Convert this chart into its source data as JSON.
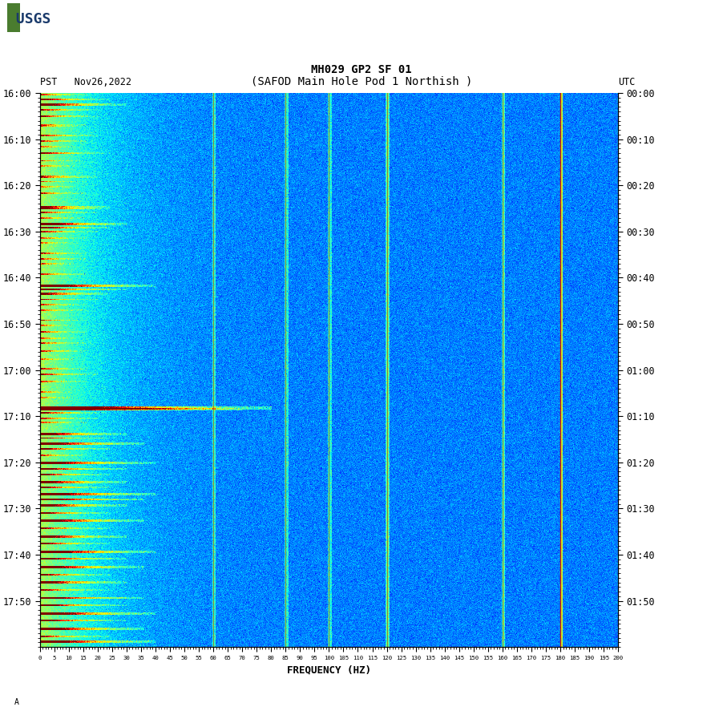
{
  "title_line1": "MH029 GP2 SF 01",
  "title_line2": "(SAFOD Main Hole Pod 1 Northish )",
  "label_left": "PST",
  "label_date": "Nov26,2022",
  "label_right": "UTC",
  "xlabel": "FREQUENCY (HZ)",
  "freq_min": 0,
  "freq_max": 200,
  "freq_ticks": [
    0,
    5,
    10,
    15,
    20,
    25,
    30,
    35,
    40,
    45,
    50,
    55,
    60,
    65,
    70,
    75,
    80,
    85,
    90,
    95,
    100,
    105,
    110,
    115,
    120,
    125,
    130,
    135,
    140,
    145,
    150,
    155,
    160,
    165,
    170,
    175,
    180,
    185,
    190,
    195,
    200
  ],
  "time_labels_left": [
    "16:00",
    "16:10",
    "16:20",
    "16:30",
    "16:40",
    "16:50",
    "17:00",
    "17:10",
    "17:20",
    "17:30",
    "17:40",
    "17:50"
  ],
  "time_labels_right": [
    "00:00",
    "00:10",
    "00:20",
    "00:30",
    "00:40",
    "00:50",
    "01:00",
    "01:10",
    "01:20",
    "01:30",
    "01:40",
    "01:50"
  ],
  "vertical_lines_olive": [
    60.0,
    85.0,
    100.0,
    120.0,
    160.0
  ],
  "vertical_line_red": 180.0,
  "background_color": "#ffffff",
  "colormap": "jet",
  "seed": 42,
  "figsize": [
    9.02,
    8.92
  ],
  "dpi": 100,
  "n_time": 720,
  "n_freq": 800
}
